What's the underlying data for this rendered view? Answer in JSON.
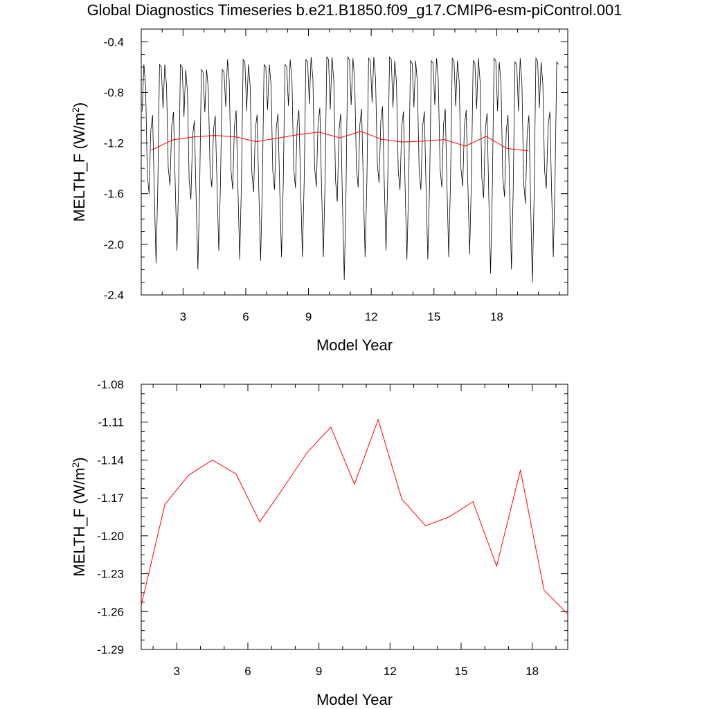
{
  "title": "Global Diagnostics Timeseries b.e21.B1850.f09_g17.CMIP6-esm-piControl.001",
  "colors": {
    "monthly": "#000000",
    "annual": "#ff0000"
  },
  "chart_data": [
    {
      "type": "line",
      "xlabel": "Model Year",
      "ylabel_main": "MELTH_F (W/m",
      "ylabel_sup": "2",
      "ylabel_end": ")",
      "xlim": [
        1,
        21.4
      ],
      "ylim": [
        -2.4,
        -0.3
      ],
      "xticks": [
        3,
        6,
        9,
        12,
        15,
        18
      ],
      "yticks": [
        -0.4,
        -0.8,
        -1.2,
        -1.6,
        -2.0,
        -2.4
      ],
      "ytick_labels": [
        "-0.4",
        "-0.8",
        "-1.2",
        "-1.6",
        "-2.0",
        "-2.4"
      ],
      "monthly_pattern": [
        -0.95,
        -0.58,
        -0.75,
        -1.45,
        -1.6,
        -1.1,
        -0.98,
        -1.6,
        -2.15,
        -1.55,
        -0.58,
        -0.6
      ],
      "monthly_peaks": [
        -0.58,
        -0.58,
        -0.62,
        -0.62,
        -0.54,
        -0.58,
        -0.58,
        -0.54,
        -0.52,
        -0.52,
        -0.53,
        -0.52,
        -0.55,
        -0.55,
        -0.53,
        -0.55,
        -0.53,
        -0.56,
        -0.53,
        -0.56
      ],
      "monthly_troughs": [
        -2.15,
        -2.05,
        -2.2,
        -2.05,
        -2.12,
        -2.13,
        -2.1,
        -2.1,
        -2.1,
        -2.28,
        -2.1,
        -2.05,
        -2.12,
        -2.12,
        -2.1,
        -2.08,
        -2.23,
        -2.2,
        -2.3,
        -2.1
      ],
      "series": [
        {
          "name": "",
          "role": "annual",
          "x": [
            1.5,
            2.5,
            3.5,
            4.5,
            5.5,
            6.5,
            7.5,
            8.5,
            9.5,
            10.5,
            11.5,
            12.5,
            13.5,
            14.5,
            15.5,
            16.5,
            17.5,
            18.5,
            19.5
          ],
          "values": [
            -1.255,
            -1.175,
            -1.152,
            -1.14,
            -1.151,
            -1.189,
            -1.162,
            -1.134,
            -1.114,
            -1.159,
            -1.108,
            -1.171,
            -1.192,
            -1.185,
            -1.173,
            -1.224,
            -1.148,
            -1.243,
            -1.262
          ]
        }
      ]
    },
    {
      "type": "line",
      "xlabel": "Model Year",
      "ylabel_main": "MELTH_F (W/m",
      "ylabel_sup": "2",
      "ylabel_end": ")",
      "xlim": [
        1.5,
        19.5
      ],
      "ylim": [
        -1.29,
        -1.08
      ],
      "xticks": [
        3,
        6,
        9,
        12,
        15,
        18
      ],
      "yticks": [
        -1.08,
        -1.11,
        -1.14,
        -1.17,
        -1.2,
        -1.23,
        -1.26,
        -1.29
      ],
      "ytick_labels": [
        "-1.08",
        "-1.11",
        "-1.14",
        "-1.17",
        "-1.20",
        "-1.23",
        "-1.26",
        "-1.29"
      ],
      "series": [
        {
          "name": "",
          "role": "annual",
          "x": [
            1.5,
            2.5,
            3.5,
            4.5,
            5.5,
            6.5,
            7.5,
            8.5,
            9.5,
            10.5,
            11.5,
            12.5,
            13.5,
            14.5,
            15.5,
            16.5,
            17.5,
            18.5,
            19.5
          ],
          "values": [
            -1.255,
            -1.175,
            -1.152,
            -1.14,
            -1.151,
            -1.189,
            -1.162,
            -1.134,
            -1.114,
            -1.159,
            -1.108,
            -1.171,
            -1.192,
            -1.185,
            -1.173,
            -1.224,
            -1.148,
            -1.243,
            -1.262
          ]
        }
      ]
    }
  ]
}
